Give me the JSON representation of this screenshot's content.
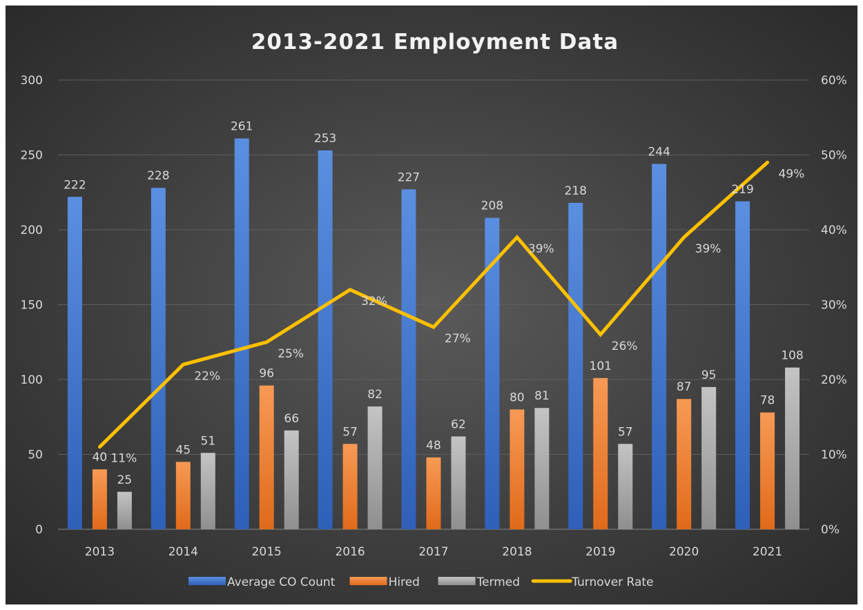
{
  "chart_data": {
    "type": "bar",
    "title": "2013-2021 Employment Data",
    "categories": [
      "2013",
      "2014",
      "2015",
      "2016",
      "2017",
      "2018",
      "2019",
      "2020",
      "2021"
    ],
    "series": [
      {
        "name": "Average CO Count",
        "type": "bar",
        "axis": "left",
        "color": "#4472C4",
        "values": [
          222,
          228,
          261,
          253,
          227,
          208,
          218,
          244,
          219
        ]
      },
      {
        "name": "Hired",
        "type": "bar",
        "axis": "left",
        "color": "#ED7D31",
        "values": [
          40,
          45,
          96,
          57,
          48,
          80,
          101,
          87,
          78
        ]
      },
      {
        "name": "Termed",
        "type": "bar",
        "axis": "left",
        "color": "#A5A5A5",
        "values": [
          25,
          51,
          66,
          82,
          62,
          81,
          57,
          95,
          108
        ]
      },
      {
        "name": "Turnover Rate",
        "type": "line",
        "axis": "right",
        "color": "#FFC000",
        "values": [
          11,
          22,
          25,
          32,
          27,
          39,
          26,
          39,
          49
        ],
        "labels": [
          "11%",
          "22%",
          "25%",
          "32%",
          "27%",
          "39%",
          "26%",
          "39%",
          "49%"
        ]
      }
    ],
    "y_left": {
      "min": 0,
      "max": 300,
      "ticks": [
        "0",
        "50",
        "100",
        "150",
        "200",
        "250",
        "300"
      ]
    },
    "y_right": {
      "min": 0,
      "max": 60,
      "ticks": [
        "0%",
        "10%",
        "20%",
        "30%",
        "40%",
        "50%",
        "60%"
      ]
    },
    "grid": true,
    "legend_position": "bottom"
  }
}
